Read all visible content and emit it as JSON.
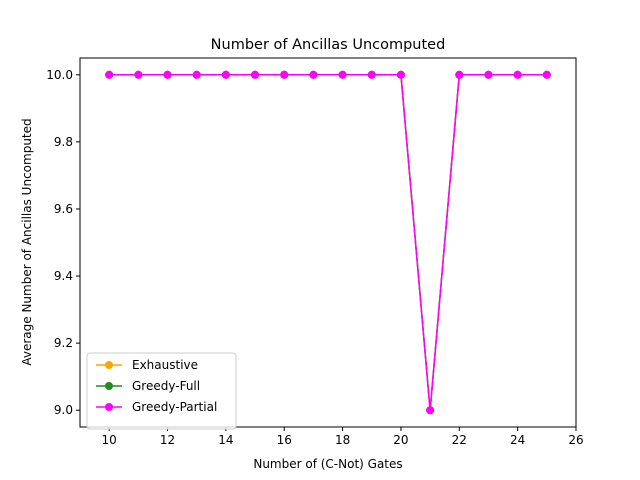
{
  "chart_data": {
    "type": "line",
    "title": "Number of Ancillas Uncomputed",
    "xlabel": "Number of (C-Not) Gates",
    "ylabel": "Average Number of Ancillas Uncomputed",
    "xlim": [
      9,
      26
    ],
    "ylim": [
      8.95,
      10.05
    ],
    "xticks": [
      10,
      12,
      14,
      16,
      18,
      20,
      22,
      24,
      26
    ],
    "yticks": [
      9.0,
      9.2,
      9.4,
      9.6,
      9.8,
      10.0
    ],
    "xtick_labels": [
      "10",
      "12",
      "14",
      "16",
      "18",
      "20",
      "22",
      "24",
      "26"
    ],
    "ytick_labels": [
      "9.0",
      "9.2",
      "9.4",
      "9.6",
      "9.8",
      "10.0"
    ],
    "grid": false,
    "legend_position": "lower-left",
    "x": [
      10,
      11,
      12,
      13,
      14,
      15,
      16,
      17,
      18,
      19,
      20,
      21,
      22,
      23,
      24,
      25
    ],
    "series": [
      {
        "name": "Exhaustive",
        "color": "#ffa500",
        "values": [
          10,
          10,
          10,
          10,
          10,
          10,
          10,
          10,
          10,
          10,
          10,
          9,
          10,
          10,
          10,
          10
        ]
      },
      {
        "name": "Greedy-Full",
        "color": "#228b22",
        "values": [
          10,
          10,
          10,
          10,
          10,
          10,
          10,
          10,
          10,
          10,
          10,
          9,
          10,
          10,
          10,
          10
        ]
      },
      {
        "name": "Greedy-Partial",
        "color": "#ff00ff",
        "values": [
          10,
          10,
          10,
          10,
          10,
          10,
          10,
          10,
          10,
          10,
          10,
          9,
          10,
          10,
          10,
          10
        ]
      }
    ]
  }
}
